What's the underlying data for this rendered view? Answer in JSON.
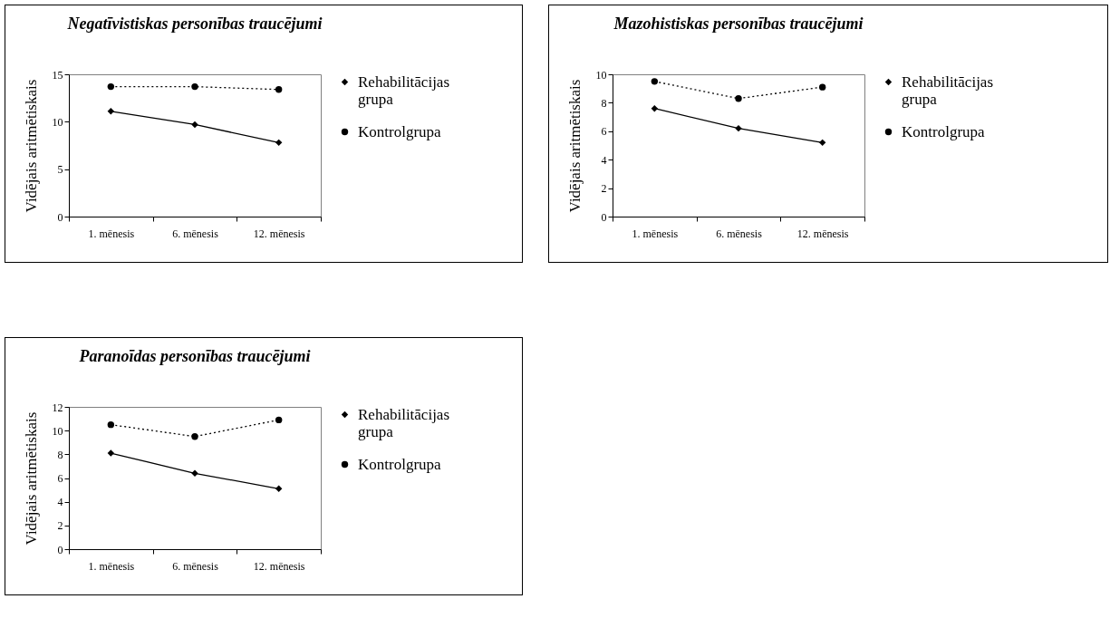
{
  "chart_data": [
    {
      "type": "line",
      "title": "Negatīvistiskas personības traucējumi",
      "ylabel": "Vidējais aritmētiskais",
      "categories": [
        "1. mēnesis",
        "6. mēnesis",
        "12. mēnesis"
      ],
      "ylim": [
        0,
        15
      ],
      "yticks": [
        0,
        5,
        10,
        15
      ],
      "grid": false,
      "legend": "right",
      "series": [
        {
          "name": "Rehabilitācijas grupa",
          "color": "#000000",
          "marker": "diamond",
          "line_style": "solid",
          "values": [
            11.1,
            9.7,
            7.8
          ]
        },
        {
          "name": "Kontrolgrupa",
          "color": "#000000",
          "marker": "circle",
          "line_style": "dotted",
          "values": [
            13.7,
            13.7,
            13.4
          ]
        }
      ]
    },
    {
      "type": "line",
      "title": "Mazohistiskas personības traucējumi",
      "ylabel": "Vidējais aritmētiskais",
      "categories": [
        "1. mēnesis",
        "6. mēnesis",
        "12. mēnesis"
      ],
      "ylim": [
        0,
        10
      ],
      "yticks": [
        0,
        2,
        4,
        6,
        8,
        10
      ],
      "grid": false,
      "legend": "right",
      "series": [
        {
          "name": "Rehabilitācijas grupa",
          "color": "#000000",
          "marker": "diamond",
          "line_style": "solid",
          "values": [
            7.6,
            6.2,
            5.2
          ]
        },
        {
          "name": "Kontrolgrupa",
          "color": "#000000",
          "marker": "circle",
          "line_style": "dotted",
          "values": [
            9.5,
            8.3,
            9.1
          ]
        }
      ]
    },
    {
      "type": "line",
      "title": "Paranoīdas personības traucējumi",
      "ylabel": "Vidējais aritmētiskais",
      "categories": [
        "1. mēnesis",
        "6. mēnesis",
        "12. mēnesis"
      ],
      "ylim": [
        0,
        12
      ],
      "yticks": [
        0,
        2,
        4,
        6,
        8,
        10,
        12
      ],
      "grid": false,
      "legend": "right",
      "series": [
        {
          "name": "Rehabilitācijas grupa",
          "color": "#000000",
          "marker": "diamond",
          "line_style": "solid",
          "values": [
            8.1,
            6.4,
            5.1
          ]
        },
        {
          "name": "Kontrolgrupa",
          "color": "#000000",
          "marker": "circle",
          "line_style": "dotted",
          "values": [
            10.5,
            9.5,
            10.9
          ]
        }
      ]
    }
  ]
}
